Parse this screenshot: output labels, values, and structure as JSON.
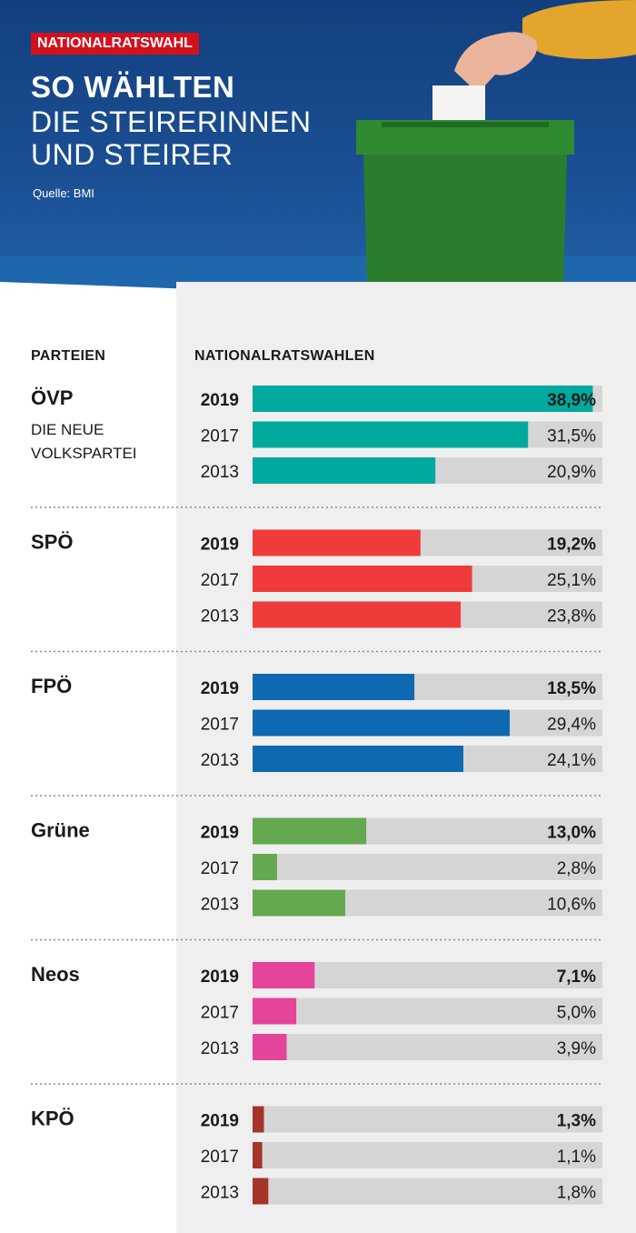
{
  "header": {
    "tag": "NATIONALRATSWAHL",
    "title_line1": "SO WÄHLTEN",
    "title_line2": "DIE STEIRERINNEN",
    "title_line3": "UND STEIRER",
    "source": "Quelle: BMI"
  },
  "columns": {
    "parties": "PARTEIEN",
    "elections": "NATIONALRATSWAHLEN"
  },
  "colors": {
    "ÖVP": "#00a99d",
    "SPÖ": "#ef3b3a",
    "FPÖ": "#0f69b0",
    "Grüne": "#64a84f",
    "Neos": "#e4449a",
    "KPÖ": "#a5342b",
    "track": "#d6d5d5"
  },
  "chart_data": {
    "type": "bar",
    "orientation": "horizontal",
    "title": "SO WÄHLTEN DIE STEIRERINNEN UND STEIRER",
    "xlim": [
      0,
      40
    ],
    "grid": false,
    "groups": [
      {
        "party": "ÖVP",
        "subtitle": [
          "DIE NEUE",
          "VOLKSPARTEI"
        ],
        "rows": [
          {
            "year": "2019",
            "value": 38.9,
            "label": "38,9%"
          },
          {
            "year": "2017",
            "value": 31.5,
            "label": "31,5%"
          },
          {
            "year": "2013",
            "value": 20.9,
            "label": "20,9%"
          }
        ]
      },
      {
        "party": "SPÖ",
        "subtitle": [],
        "rows": [
          {
            "year": "2019",
            "value": 19.2,
            "label": "19,2%"
          },
          {
            "year": "2017",
            "value": 25.1,
            "label": "25,1%"
          },
          {
            "year": "2013",
            "value": 23.8,
            "label": "23,8%"
          }
        ]
      },
      {
        "party": "FPÖ",
        "subtitle": [],
        "rows": [
          {
            "year": "2019",
            "value": 18.5,
            "label": "18,5%"
          },
          {
            "year": "2017",
            "value": 29.4,
            "label": "29,4%"
          },
          {
            "year": "2013",
            "value": 24.1,
            "label": "24,1%"
          }
        ]
      },
      {
        "party": "Grüne",
        "subtitle": [],
        "rows": [
          {
            "year": "2019",
            "value": 13.0,
            "label": "13,0%"
          },
          {
            "year": "2017",
            "value": 2.8,
            "label": "2,8%"
          },
          {
            "year": "2013",
            "value": 10.6,
            "label": "10,6%"
          }
        ]
      },
      {
        "party": "Neos",
        "subtitle": [],
        "rows": [
          {
            "year": "2019",
            "value": 7.1,
            "label": "7,1%"
          },
          {
            "year": "2017",
            "value": 5.0,
            "label": "5,0%"
          },
          {
            "year": "2013",
            "value": 3.9,
            "label": "3,9%"
          }
        ]
      },
      {
        "party": "KPÖ",
        "subtitle": [],
        "rows": [
          {
            "year": "2019",
            "value": 1.3,
            "label": "1,3%"
          },
          {
            "year": "2017",
            "value": 1.1,
            "label": "1,1%"
          },
          {
            "year": "2013",
            "value": 1.8,
            "label": "1,8%"
          }
        ]
      }
    ]
  }
}
